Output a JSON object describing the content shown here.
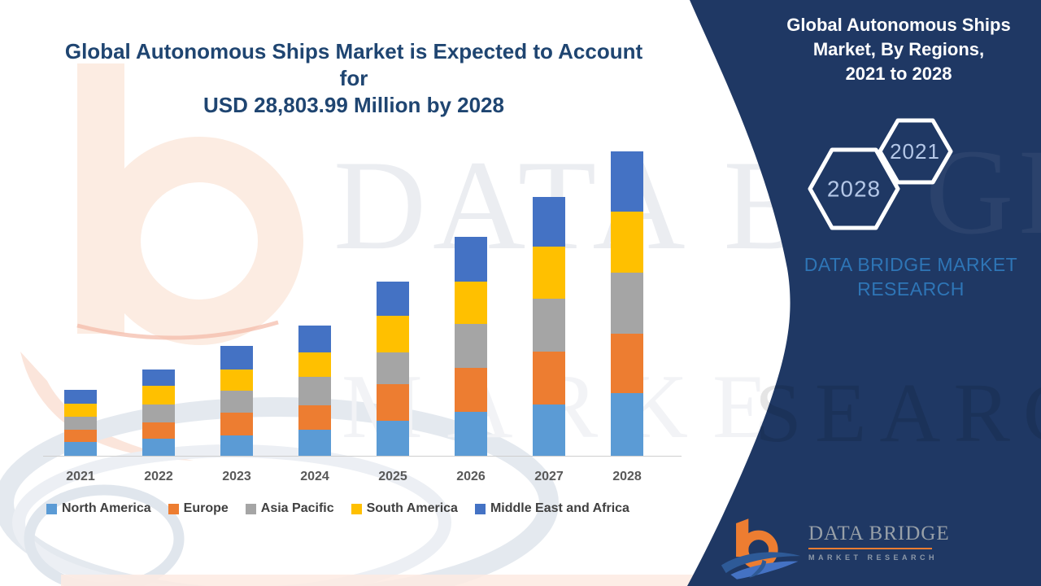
{
  "header": {
    "line1": "Global Autonomous Ships Market is Expected to Account for",
    "line2": "USD 28,803.99 Million by 2028"
  },
  "chart_data": {
    "type": "bar",
    "stacked": true,
    "title": "Global Autonomous Ships Market is Expected to Account for USD 28,803.99 Million by 2028",
    "unit": "USD Million",
    "categories": [
      "2021",
      "2022",
      "2023",
      "2024",
      "2025",
      "2026",
      "2027",
      "2028"
    ],
    "series": [
      {
        "name": "North America",
        "color": "#5B9BD5",
        "values": [
          1310,
          1610,
          1920,
          2460,
          3300,
          4150,
          4840,
          5913.99
        ]
      },
      {
        "name": "Europe",
        "color": "#ED7D31",
        "values": [
          1150,
          1540,
          2150,
          2300,
          3460,
          4150,
          4990,
          5610
        ]
      },
      {
        "name": "Asia Pacific",
        "color": "#A5A5A5",
        "values": [
          1230,
          1690,
          2070,
          2690,
          3000,
          4150,
          4990,
          5760
        ]
      },
      {
        "name": "South America",
        "color": "#FFC000",
        "values": [
          1230,
          1770,
          2000,
          2300,
          3460,
          3990,
          4920,
          5760
        ]
      },
      {
        "name": "Middle East and Africa",
        "color": "#4472C4",
        "values": [
          1310,
          1540,
          2230,
          2540,
          3230,
          4220,
          4760,
          5760
        ]
      }
    ],
    "ylim": [
      0,
      29000
    ],
    "grid": false,
    "legend_position": "bottom"
  },
  "panel": {
    "background_color": "#1F3864",
    "title_lines": [
      "Global Autonomous Ships",
      "Market, By Regions,",
      "2021 to 2028"
    ],
    "hexagons": [
      {
        "label": "2021"
      },
      {
        "label": "2028"
      }
    ],
    "hexagon_text_color": "#B4C7E7",
    "brand": {
      "line1": "DATA BRIDGE MARKET",
      "line2": "RESEARCH",
      "color": "#2E75B6"
    },
    "logo": {
      "name": "DATA BRIDGE",
      "tagline": "MARKET RESEARCH"
    }
  },
  "watermark": {
    "brand_line1": "DATA BRIDGE",
    "brand_line2": "MARKET RESEARCH",
    "panel_fragment_top": "GE",
    "panel_fragment_bottom": "SEARCH"
  },
  "colors": {
    "title_text": "#1F4571",
    "axis_label": "#595959",
    "legend_text": "#404040"
  }
}
